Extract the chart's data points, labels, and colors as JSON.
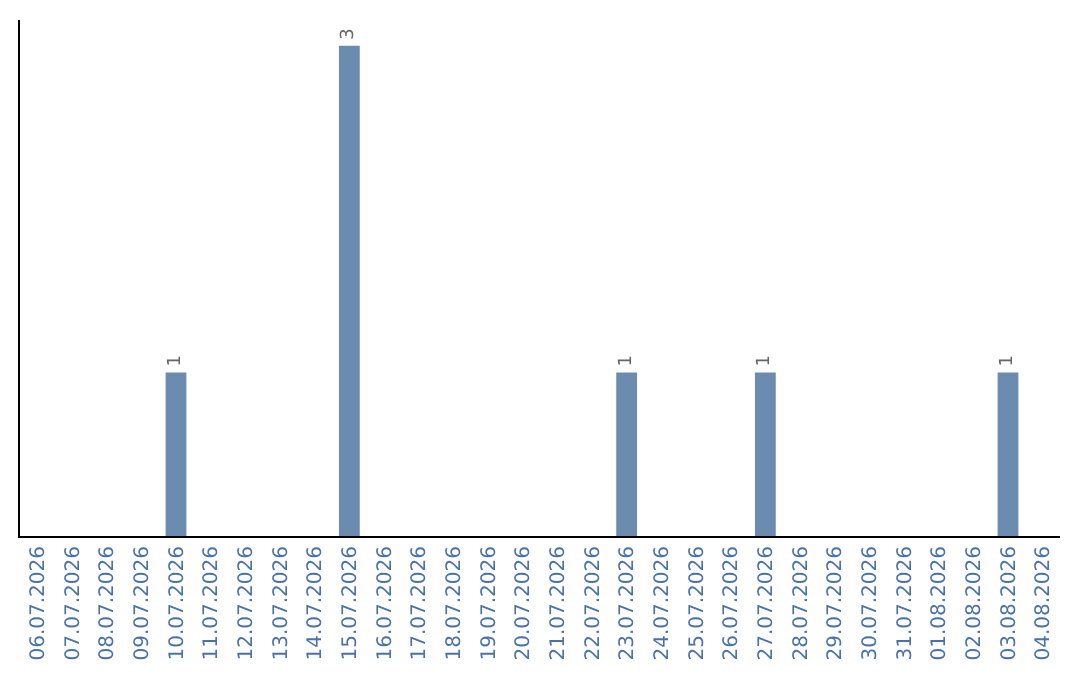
{
  "chart_data": {
    "type": "bar",
    "categories": [
      "06.07.2026",
      "07.07.2026",
      "08.07.2026",
      "09.07.2026",
      "10.07.2026",
      "11.07.2026",
      "12.07.2026",
      "13.07.2026",
      "14.07.2026",
      "15.07.2026",
      "16.07.2026",
      "17.07.2026",
      "18.07.2026",
      "19.07.2026",
      "20.07.2026",
      "21.07.2026",
      "22.07.2026",
      "23.07.2026",
      "24.07.2026",
      "25.07.2026",
      "26.07.2026",
      "27.07.2026",
      "28.07.2026",
      "29.07.2026",
      "30.07.2026",
      "31.07.2026",
      "01.08.2026",
      "02.08.2026",
      "03.08.2026",
      "04.08.2026"
    ],
    "values": [
      0,
      0,
      0,
      0,
      1,
      0,
      0,
      0,
      0,
      3,
      0,
      0,
      0,
      0,
      0,
      0,
      0,
      1,
      0,
      0,
      0,
      1,
      0,
      0,
      0,
      0,
      0,
      0,
      1,
      0
    ],
    "value_labels": [
      null,
      null,
      null,
      null,
      "1",
      null,
      null,
      null,
      null,
      "3",
      null,
      null,
      null,
      null,
      null,
      null,
      null,
      "1",
      null,
      null,
      null,
      "1",
      null,
      null,
      null,
      null,
      null,
      null,
      "1",
      null
    ],
    "color": "#6b8cae",
    "grid": false,
    "legend": false,
    "tick_labels": "x"
  }
}
